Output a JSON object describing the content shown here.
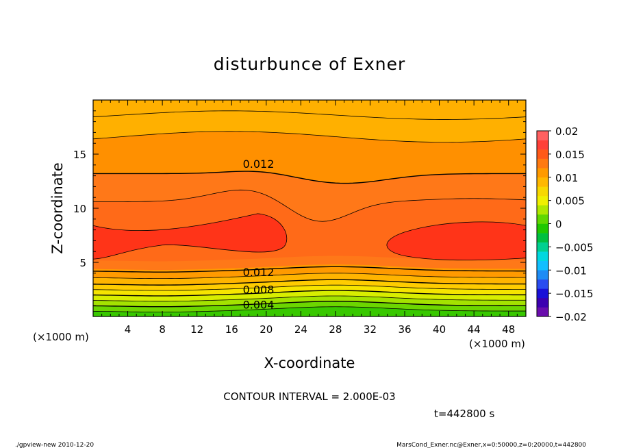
{
  "chart_data": {
    "type": "heatmap",
    "title": "disturbunce of Exner",
    "xlabel": "X-coordinate",
    "ylabel": "Z-coordinate",
    "x_unit_left": "(×1000 m)",
    "x_unit_right": "(×1000 m)",
    "y_unit": "(×1000 m)",
    "xlim": [
      0,
      50
    ],
    "ylim": [
      0,
      20
    ],
    "x_ticks": [
      4,
      8,
      12,
      16,
      20,
      24,
      28,
      32,
      36,
      40,
      44,
      48
    ],
    "y_ticks": [
      5,
      10,
      15
    ],
    "contour_interval_text": "CONTOUR INTERVAL = 2.000E-03",
    "time_text": "t=442800 s",
    "contour_labels": [
      {
        "text": "0.012",
        "x": 18,
        "z": 14.1
      },
      {
        "text": "0.012",
        "x": 18,
        "z": 4.1
      },
      {
        "text": "0.008",
        "x": 18,
        "z": 2.5
      },
      {
        "text": "0.004",
        "x": 18,
        "z": 1.1
      }
    ],
    "colorbar": {
      "tick_labels": [
        "0.02",
        "0.015",
        "0.01",
        "0.005",
        "0",
        "−0.005",
        "−0.01",
        "−0.015",
        "−0.02"
      ],
      "tick_values": [
        0.02,
        0.015,
        0.01,
        0.005,
        0,
        -0.005,
        -0.01,
        -0.015,
        -0.02
      ],
      "levels": [
        -0.02,
        -0.018,
        -0.016,
        -0.014,
        -0.012,
        -0.01,
        -0.008,
        -0.006,
        -0.004,
        -0.002,
        0,
        0.002,
        0.004,
        0.006,
        0.008,
        0.01,
        0.012,
        0.014,
        0.016,
        0.018,
        0.02
      ],
      "colors": [
        "#6a0dad",
        "#3d00b0",
        "#1a10d8",
        "#2a4cf0",
        "#1e8cf5",
        "#11bfff",
        "#00d8e0",
        "#00d090",
        "#00c040",
        "#20c800",
        "#60d800",
        "#b0e800",
        "#f0f000",
        "#f8d800",
        "#ffb800",
        "#ff9a00",
        "#ff7a10",
        "#ff5a18",
        "#ff4038",
        "#ff6060"
      ]
    },
    "fill_bands_z": [
      {
        "z_top": 0.4,
        "color": "#2ec800"
      },
      {
        "z_top": 0.9,
        "color": "#66d600"
      },
      {
        "z_top": 1.4,
        "color": "#a8e400"
      },
      {
        "z_top": 1.9,
        "color": "#dcee00"
      },
      {
        "z_top": 2.4,
        "color": "#f6e600"
      },
      {
        "z_top": 2.9,
        "color": "#ffd000"
      },
      {
        "z_top": 3.5,
        "color": "#ffb400"
      },
      {
        "z_top": 4.3,
        "color": "#ff9a00"
      },
      {
        "z_top": 6.0,
        "color": "#ff7a10"
      },
      {
        "z_top": 12.4,
        "color": "#ff6a18"
      },
      {
        "z_top": 16.5,
        "color": "#ff8a00"
      },
      {
        "z_top": 20.0,
        "color": "#ffb000"
      }
    ]
  },
  "footer": {
    "left": "./gpview-new   2010-12-20",
    "right": "MarsCond_Exner.nc@Exner,x=0:50000,z=0:20000,t=442800"
  }
}
